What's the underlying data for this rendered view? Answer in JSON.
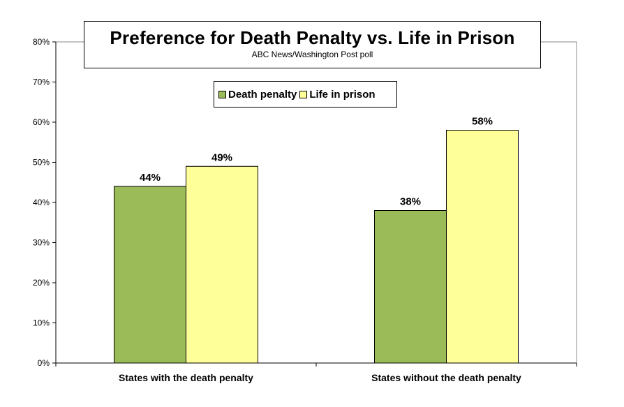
{
  "chart_data": {
    "type": "bar",
    "title": "Preference for Death Penalty vs. Life in Prison",
    "subtitle": "ABC News/Washington  Post poll",
    "categories": [
      "States with the death penalty",
      "States without the death penalty"
    ],
    "series": [
      {
        "name": "Death penalty",
        "values": [
          44,
          38
        ],
        "labels": [
          "44%",
          "38%"
        ],
        "color": "#9BBB59"
      },
      {
        "name": "Life in prison",
        "values": [
          49,
          58
        ],
        "labels": [
          "49%",
          "58%"
        ],
        "color": "#FFFF99"
      }
    ],
    "ylim": [
      0,
      80
    ],
    "yticks": [
      0,
      10,
      20,
      30,
      40,
      50,
      60,
      70,
      80
    ],
    "ytick_labels": [
      "0%",
      "10%",
      "20%",
      "30%",
      "40%",
      "50%",
      "60%",
      "70%",
      "80%"
    ],
    "legend": "top-center",
    "grid": false
  }
}
